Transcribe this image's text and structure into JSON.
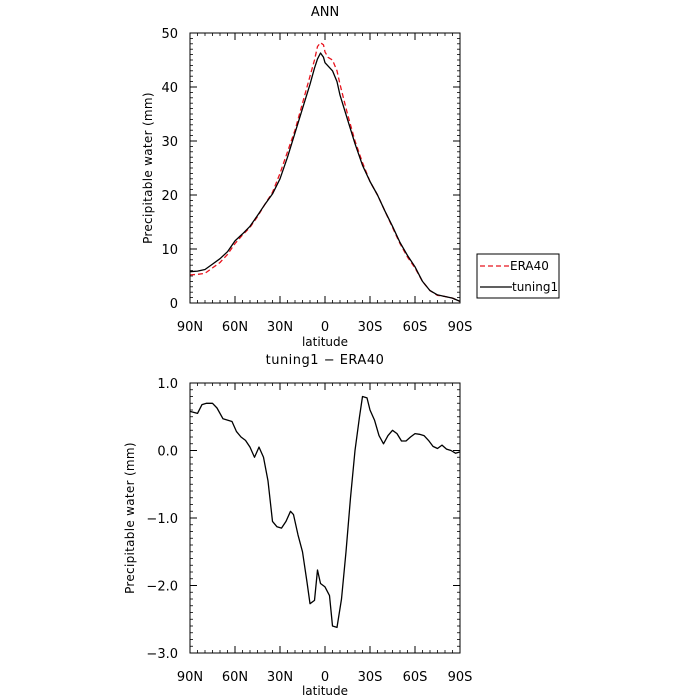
{
  "chart_data": [
    {
      "type": "line",
      "title": "ANN",
      "xlabel": "latitude",
      "ylabel": "Precipitable water  (mm)",
      "x_tick_values": [
        90,
        60,
        30,
        0,
        -30,
        -60,
        -90
      ],
      "x_tick_labels": [
        "90N",
        "60N",
        "30N",
        "0",
        "30S",
        "60S",
        "90S"
      ],
      "xlim": [
        90,
        -90
      ],
      "ylim": [
        0,
        50
      ],
      "y_ticks": [
        0,
        10,
        20,
        30,
        40,
        50
      ],
      "y_tick_labels": [
        "0",
        "10",
        "20",
        "30",
        "40",
        "50"
      ],
      "legend_position": "right",
      "series": [
        {
          "name": "ERA40",
          "color": "#e8141e",
          "style": "dashed",
          "points": [
            [
              90,
              5.2
            ],
            [
              85,
              5.3
            ],
            [
              80,
              5.5
            ],
            [
              75,
              6.5
            ],
            [
              70,
              7.5
            ],
            [
              65,
              9
            ],
            [
              60,
              11
            ],
            [
              55,
              12.6
            ],
            [
              50,
              14
            ],
            [
              45,
              16
            ],
            [
              40,
              18.3
            ],
            [
              35,
              20.5
            ],
            [
              30,
              24
            ],
            [
              25,
              28
            ],
            [
              20,
              32
            ],
            [
              15,
              37
            ],
            [
              10,
              42
            ],
            [
              7,
              45
            ],
            [
              5,
              47.5
            ],
            [
              3,
              48.2
            ],
            [
              1,
              47.8
            ],
            [
              0,
              46.5
            ],
            [
              -2,
              45.5
            ],
            [
              -5,
              45
            ],
            [
              -8,
              43
            ],
            [
              -10,
              40.5
            ],
            [
              -15,
              35
            ],
            [
              -20,
              30
            ],
            [
              -25,
              26
            ],
            [
              -30,
              22.5
            ],
            [
              -35,
              20
            ],
            [
              -40,
              17
            ],
            [
              -45,
              14
            ],
            [
              -50,
              11
            ],
            [
              -55,
              8.5
            ],
            [
              -60,
              6.5
            ],
            [
              -65,
              4
            ],
            [
              -70,
              2.3
            ],
            [
              -75,
              1.4
            ],
            [
              -80,
              1.2
            ],
            [
              -85,
              0.9
            ],
            [
              -90,
              0.3
            ]
          ]
        },
        {
          "name": "tuning1",
          "color": "#000000",
          "style": "solid",
          "points": [
            [
              90,
              5.8
            ],
            [
              85,
              5.9
            ],
            [
              80,
              6.2
            ],
            [
              75,
              7.2
            ],
            [
              70,
              8.2
            ],
            [
              65,
              9.5
            ],
            [
              60,
              11.5
            ],
            [
              55,
              12.8
            ],
            [
              50,
              14.2
            ],
            [
              45,
              16.2
            ],
            [
              40,
              18.3
            ],
            [
              35,
              20.2
            ],
            [
              30,
              23
            ],
            [
              25,
              27
            ],
            [
              20,
              31.5
            ],
            [
              15,
              36
            ],
            [
              10,
              40.5
            ],
            [
              7,
              43.5
            ],
            [
              5,
              45.2
            ],
            [
              3,
              46.3
            ],
            [
              1,
              45.5
            ],
            [
              0,
              44.5
            ],
            [
              -3,
              43.6
            ],
            [
              -5,
              43
            ],
            [
              -8,
              41
            ],
            [
              -10,
              38.5
            ],
            [
              -15,
              34
            ],
            [
              -20,
              29.5
            ],
            [
              -25,
              25.5
            ],
            [
              -30,
              22.5
            ],
            [
              -35,
              20
            ],
            [
              -40,
              17
            ],
            [
              -45,
              14.2
            ],
            [
              -50,
              11.2
            ],
            [
              -55,
              8.8
            ],
            [
              -60,
              6.7
            ],
            [
              -65,
              4
            ],
            [
              -70,
              2.3
            ],
            [
              -75,
              1.5
            ],
            [
              -80,
              1.2
            ],
            [
              -85,
              0.9
            ],
            [
              -90,
              0.3
            ]
          ]
        }
      ]
    },
    {
      "type": "line",
      "title": "tuning1 − ERA40",
      "xlabel": "latitude",
      "ylabel": "Precipitable water  (mm)",
      "x_tick_values": [
        90,
        60,
        30,
        0,
        -30,
        -60,
        -90
      ],
      "x_tick_labels": [
        "90N",
        "60N",
        "30N",
        "0",
        "30S",
        "60S",
        "90S"
      ],
      "xlim": [
        90,
        -90
      ],
      "ylim": [
        -3,
        1
      ],
      "y_ticks": [
        1,
        0,
        -1,
        -2,
        -3
      ],
      "y_tick_labels": [
        "1.0",
        "0.0",
        "−1.0",
        "−2.0",
        "−3.0"
      ],
      "series": [
        {
          "name": "tuning1 − ERA40",
          "color": "#000000",
          "style": "solid",
          "points": [
            [
              90,
              0.58
            ],
            [
              85,
              0.55
            ],
            [
              82,
              0.68
            ],
            [
              79,
              0.7
            ],
            [
              75,
              0.7
            ],
            [
              72,
              0.63
            ],
            [
              68,
              0.47
            ],
            [
              65,
              0.45
            ],
            [
              62,
              0.43
            ],
            [
              59,
              0.28
            ],
            [
              56,
              0.2
            ],
            [
              53,
              0.15
            ],
            [
              50,
              0.05
            ],
            [
              47,
              -0.1
            ],
            [
              44,
              0.05
            ],
            [
              41,
              -0.1
            ],
            [
              38,
              -0.45
            ],
            [
              35,
              -1.05
            ],
            [
              32,
              -1.13
            ],
            [
              29,
              -1.15
            ],
            [
              26,
              -1.05
            ],
            [
              23,
              -0.9
            ],
            [
              21,
              -0.95
            ],
            [
              18,
              -1.25
            ],
            [
              15,
              -1.5
            ],
            [
              12,
              -1.95
            ],
            [
              10,
              -2.27
            ],
            [
              7,
              -2.22
            ],
            [
              5,
              -1.77
            ],
            [
              3,
              -1.97
            ],
            [
              0,
              -2.02
            ],
            [
              -3,
              -2.15
            ],
            [
              -5,
              -2.6
            ],
            [
              -8,
              -2.62
            ],
            [
              -11,
              -2.2
            ],
            [
              -14,
              -1.5
            ],
            [
              -17,
              -0.7
            ],
            [
              -20,
              0.0
            ],
            [
              -23,
              0.5
            ],
            [
              -25,
              0.8
            ],
            [
              -28,
              0.78
            ],
            [
              -30,
              0.6
            ],
            [
              -33,
              0.45
            ],
            [
              -36,
              0.22
            ],
            [
              -39,
              0.1
            ],
            [
              -42,
              0.22
            ],
            [
              -45,
              0.3
            ],
            [
              -48,
              0.25
            ],
            [
              -51,
              0.14
            ],
            [
              -54,
              0.14
            ],
            [
              -57,
              0.2
            ],
            [
              -60,
              0.25
            ],
            [
              -63,
              0.24
            ],
            [
              -66,
              0.22
            ],
            [
              -69,
              0.15
            ],
            [
              -72,
              0.06
            ],
            [
              -75,
              0.03
            ],
            [
              -78,
              0.08
            ],
            [
              -81,
              0.02
            ],
            [
              -84,
              0.0
            ],
            [
              -87,
              -0.04
            ],
            [
              -90,
              -0.02
            ]
          ]
        }
      ]
    }
  ]
}
